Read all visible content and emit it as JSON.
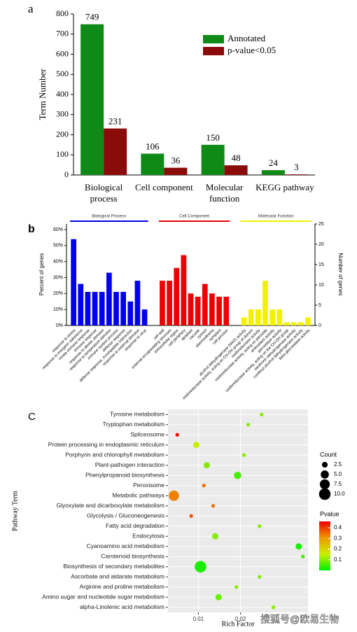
{
  "chart_data": [
    {
      "type": "bar",
      "panel_label": "a",
      "ylabel": "Term Number",
      "categories": [
        "Biological process",
        "Cell component",
        "Molecular function",
        "KEGG pathway"
      ],
      "series": [
        {
          "name": "Annotated",
          "color": "#0f8a17",
          "values": [
            749,
            106,
            150,
            24
          ]
        },
        {
          "name": "p-value<0.05",
          "color": "#8b0a0a",
          "values": [
            231,
            36,
            48,
            3
          ]
        }
      ],
      "ylim": [
        0,
        800
      ],
      "yticks": [
        0,
        100,
        200,
        300,
        400,
        500,
        600,
        700,
        800
      ]
    },
    {
      "type": "grouped-bar",
      "panel_label": "b",
      "ylabel": "Percent of genes",
      "y2label": "Number of genes",
      "groups": [
        {
          "name": "Biological Process",
          "color": "#0000ee",
          "categories": [
            "response to stress",
            "response to inorganic substance",
            "innate immune response",
            "immune response",
            "response to abiotic stimulus",
            "response to temperature stimulus",
            "immune system process",
            "defense response",
            "defense response, incompatible interaction",
            "response to external stimulus",
            "response to virus"
          ],
          "values": [
            54,
            26,
            21,
            21,
            21,
            33,
            21,
            21,
            15,
            28,
            10
          ]
        },
        {
          "name": "Cell Component",
          "color": "#ee0000",
          "categories": [
            "cell wall",
            "external encapsulating structure",
            "extracellular region",
            "cell periphery",
            "apoplast",
            "vacuole",
            "cytosol",
            "plasmodesma",
            "symplast",
            "cell junction"
          ],
          "values": [
            28,
            28,
            36,
            44,
            20,
            18,
            26,
            20,
            18,
            18
          ]
        },
        {
          "name": "Molecular Function",
          "color": "#f2f200",
          "categories": [
            "alcohol dehydrogenase (NAD) activity",
            "oxidoreductase activity, acting on CH-OH group of donors",
            "oxidoreductase activity",
            "oxidoreductase activity, acting on peroxide",
            "antioxidant activity",
            "peroxidase activity",
            "oxidoreductase activity, acting on the CH-OH group",
            "xanthoxin dehydrogenase activity",
            "coniferyl-alcohol dehydrogenase activity",
            "beta-glucosidase activity"
          ],
          "values": [
            5,
            10,
            10,
            28,
            10,
            10,
            2,
            2,
            2,
            5
          ]
        }
      ],
      "ylim": [
        0,
        63.5
      ],
      "yticks": [
        {
          "value": 0,
          "label": "0%"
        },
        {
          "value": 10,
          "label": "10%"
        },
        {
          "value": 20,
          "label": "20%"
        },
        {
          "value": 30,
          "label": "30%"
        },
        {
          "value": 40,
          "label": "40%"
        },
        {
          "value": 50,
          "label": "50%"
        },
        {
          "value": 60,
          "label": "60%"
        }
      ],
      "y2lim": [
        0,
        25
      ],
      "y2ticks": [
        0,
        5,
        10,
        15,
        20,
        25
      ]
    },
    {
      "type": "bubble",
      "panel_label": "C",
      "ylabel": "Pathway Term",
      "xlabel": "Rich Factor",
      "categories": [
        "Tyrosine metabolism",
        "Tryptophan metabolism",
        "Spliceosome",
        "Protein processing in endoplasmic reticulum",
        "Porphyrin and chlorophyll metabolism",
        "Plant-pathogen interaction",
        "Phenylpropanoid biosynthesis",
        "Peroxisome",
        "Metabolic pathways",
        "Glyoxylate and dicarboxylate metabolism",
        "Glycolysis / Gluconeogenesis",
        "Fatty acid degradation",
        "Endocytosis",
        "Cyanoamino acid metabolism",
        "Carotenoid biosynthesis",
        "Biosynthesis of secondary metabolites",
        "Ascorbate and aldarate metabolism",
        "Arginine and proline metabolism",
        "Amino sugar and nucleotide sugar metabolism",
        "alpha-Linolenic acid metabolism"
      ],
      "x": [
        0.025,
        0.0218,
        0.005,
        0.0095,
        0.0208,
        0.012,
        0.0193,
        0.0113,
        0.0042,
        0.0135,
        0.0083,
        0.0245,
        0.014,
        0.0338,
        0.0348,
        0.0105,
        0.0245,
        0.019,
        0.0148,
        0.0278
      ],
      "count": [
        1,
        1,
        1,
        3,
        1,
        3,
        4,
        1,
        8,
        1,
        1,
        1,
        3,
        3,
        1,
        10,
        1,
        1,
        3,
        1
      ],
      "pvalue": [
        0.1,
        0.1,
        0.45,
        0.15,
        0.1,
        0.1,
        0.05,
        0.35,
        0.33,
        0.35,
        0.38,
        0.1,
        0.1,
        0.02,
        0.05,
        0.02,
        0.1,
        0.1,
        0.08,
        0.1
      ],
      "xlim": [
        0.0028,
        0.036
      ],
      "xticks": [
        0.01,
        0.02
      ],
      "size_legend_title": "Count",
      "size_legend": [
        2.5,
        {
          "value": 5,
          "label": "5.0"
        },
        7.5,
        {
          "value": 10,
          "label": "10.0"
        }
      ],
      "color_legend_title": "Pvalue",
      "clim": [
        0,
        0.46
      ],
      "cticks": [
        0.1,
        0.2,
        0.3,
        0.4
      ],
      "colorscale": [
        "#00ee00",
        "#ccee00",
        "#ee9900",
        "#ee0000"
      ],
      "grid": true
    }
  ],
  "watermark": "搜狐号@欧易生物"
}
